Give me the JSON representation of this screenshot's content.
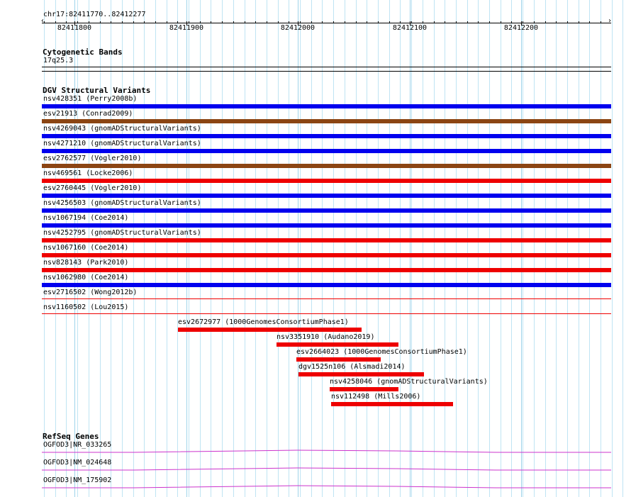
{
  "ruler": {
    "location": "chr17:82411770..82412277",
    "ticks": [
      "82411800",
      "82411900",
      "82412000",
      "82412100",
      "82412200"
    ]
  },
  "tracks": {
    "cytoband": {
      "title": "Cytogenetic Bands",
      "band": "17q25.3"
    },
    "dgv": {
      "title": "DGV Structural Variants",
      "full_width": [
        {
          "label": "nsv428351 (Perry2008b)",
          "color": "#0000ee"
        },
        {
          "label": "esv21913 (Conrad2009)",
          "color": "#8b4513"
        },
        {
          "label": "nsv4269043 (gnomADStructuralVariants)",
          "color": "#0000ee"
        },
        {
          "label": "nsv4271210 (gnomADStructuralVariants)",
          "color": "#0000ee"
        },
        {
          "label": "esv2762577 (Vogler2010)",
          "color": "#8b4513"
        },
        {
          "label": "nsv469561 (Locke2006)",
          "color": "#ee0000"
        },
        {
          "label": "esv2760445 (Vogler2010)",
          "color": "#0000ee"
        },
        {
          "label": "nsv4256503 (gnomADStructuralVariants)",
          "color": "#0000ee"
        },
        {
          "label": "nsv1067194 (Coe2014)",
          "color": "#0000ee"
        },
        {
          "label": "nsv4252795 (gnomADStructuralVariants)",
          "color": "#ee0000"
        },
        {
          "label": "nsv1067160 (Coe2014)",
          "color": "#ee0000"
        },
        {
          "label": "nsv828143 (Park2010)",
          "color": "#ee0000"
        },
        {
          "label": "nsv1062980 (Coe2014)",
          "color": "#0000ee"
        },
        {
          "label": "esv2716502 (Wong2012b)",
          "color": "#ee0000"
        },
        {
          "label": "nsv1160502 (Lou2015)",
          "color": "#ee0000"
        }
      ],
      "partial": [
        {
          "label": "esv2672977 (1000GenomesConsortiumPhase1)",
          "color": "#ee0000"
        },
        {
          "label": "nsv3351910 (Audano2019)",
          "color": "#ee0000"
        },
        {
          "label": "esv2664023 (1000GenomesConsortiumPhase1)",
          "color": "#ee0000"
        },
        {
          "label": "dgv1525n106 (Alsmadi2014)",
          "color": "#ee0000"
        },
        {
          "label": "nsv4258046 (gnomADStructuralVariants)",
          "color": "#ee0000"
        },
        {
          "label": "nsv112498 (Mills2006)",
          "color": "#ee0000"
        }
      ]
    },
    "refseq": {
      "title": "RefSeq Genes",
      "genes": [
        {
          "label": "OGFOD3|NR_033265",
          "color": "#cc33cc"
        },
        {
          "label": "OGFOD3|NM_024648",
          "color": "#cc33cc"
        },
        {
          "label": "OGFOD3|NM_175902",
          "color": "#cc33cc"
        }
      ]
    }
  }
}
